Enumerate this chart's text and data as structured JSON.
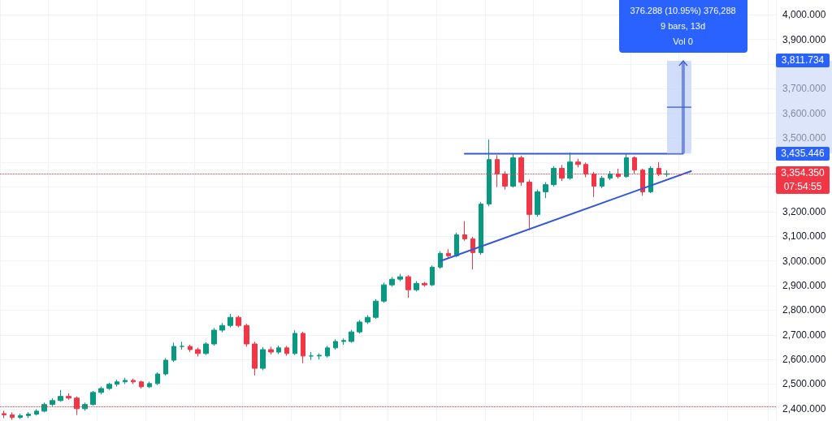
{
  "chart_data": {
    "type": "candlestick",
    "categories": [
      null,
      null,
      null,
      null,
      null,
      null,
      null,
      null,
      null,
      null,
      null,
      null,
      null,
      null,
      null,
      null,
      null,
      null,
      null,
      null,
      null,
      null,
      null,
      null,
      null,
      null,
      null,
      null,
      null,
      null,
      null,
      null,
      null,
      null,
      null,
      null,
      null,
      null,
      null,
      null,
      null,
      null,
      null,
      null,
      null,
      null,
      null,
      null,
      null,
      null,
      null,
      null,
      null,
      null,
      null,
      null,
      null,
      null,
      null,
      null,
      null,
      null,
      null,
      null,
      null,
      null,
      null,
      null,
      null,
      null,
      null,
      null,
      null,
      null,
      null,
      null,
      null,
      null,
      null,
      null,
      null,
      null,
      null,
      null,
      null,
      null,
      null,
      null,
      null,
      null,
      null,
      null,
      null,
      null,
      null,
      null
    ],
    "ohlc": [
      [
        2380,
        2392,
        2362,
        2375
      ],
      [
        2375,
        2385,
        2355,
        2365
      ],
      [
        2365,
        2380,
        2358,
        2372
      ],
      [
        2372,
        2386,
        2362,
        2378
      ],
      [
        2378,
        2398,
        2372,
        2390
      ],
      [
        2390,
        2425,
        2385,
        2417
      ],
      [
        2417,
        2442,
        2410,
        2433
      ],
      [
        2433,
        2476,
        2428,
        2450
      ],
      [
        2450,
        2462,
        2436,
        2443
      ],
      [
        2443,
        2450,
        2374,
        2400
      ],
      [
        2400,
        2425,
        2392,
        2417
      ],
      [
        2417,
        2472,
        2412,
        2466
      ],
      [
        2466,
        2490,
        2458,
        2482
      ],
      [
        2482,
        2506,
        2476,
        2499
      ],
      [
        2499,
        2518,
        2490,
        2509
      ],
      [
        2509,
        2526,
        2500,
        2515
      ],
      [
        2515,
        2522,
        2500,
        2509
      ],
      [
        2509,
        2514,
        2482,
        2489
      ],
      [
        2489,
        2510,
        2484,
        2502
      ],
      [
        2502,
        2548,
        2496,
        2541
      ],
      [
        2541,
        2605,
        2535,
        2597
      ],
      [
        2597,
        2668,
        2590,
        2653
      ],
      [
        2653,
        2672,
        2640,
        2653
      ],
      [
        2653,
        2660,
        2630,
        2640
      ],
      [
        2640,
        2648,
        2612,
        2624
      ],
      [
        2624,
        2670,
        2618,
        2663
      ],
      [
        2663,
        2728,
        2656,
        2719
      ],
      [
        2719,
        2748,
        2710,
        2738
      ],
      [
        2738,
        2785,
        2730,
        2771
      ],
      [
        2771,
        2778,
        2730,
        2738
      ],
      [
        2738,
        2745,
        2652,
        2663
      ],
      [
        2663,
        2672,
        2535,
        2564
      ],
      [
        2564,
        2650,
        2556,
        2640
      ],
      [
        2640,
        2652,
        2620,
        2630
      ],
      [
        2630,
        2656,
        2622,
        2647
      ],
      [
        2647,
        2655,
        2615,
        2624
      ],
      [
        2624,
        2718,
        2618,
        2706
      ],
      [
        2706,
        2712,
        2585,
        2614
      ],
      [
        2614,
        2630,
        2598,
        2614
      ],
      [
        2614,
        2625,
        2600,
        2617
      ],
      [
        2614,
        2655,
        2608,
        2647
      ],
      [
        2647,
        2682,
        2640,
        2673
      ],
      [
        2673,
        2685,
        2660,
        2677
      ],
      [
        2673,
        2720,
        2668,
        2712
      ],
      [
        2712,
        2760,
        2705,
        2752
      ],
      [
        2752,
        2780,
        2744,
        2771
      ],
      [
        2771,
        2845,
        2765,
        2837
      ],
      [
        2837,
        2912,
        2830,
        2903
      ],
      [
        2903,
        2935,
        2895,
        2926
      ],
      [
        2926,
        2948,
        2918,
        2936
      ],
      [
        2936,
        2942,
        2850,
        2883
      ],
      [
        2883,
        2918,
        2876,
        2909
      ],
      [
        2909,
        2915,
        2895,
        2903
      ],
      [
        2903,
        2982,
        2898,
        2975
      ],
      [
        2975,
        3040,
        2968,
        3031
      ],
      [
        3031,
        3048,
        3012,
        3021
      ],
      [
        3021,
        3115,
        3015,
        3106
      ],
      [
        3106,
        3162,
        3082,
        3090
      ],
      [
        3090,
        3098,
        2965,
        3034
      ],
      [
        3034,
        3240,
        3025,
        3231
      ],
      [
        3231,
        3494,
        3222,
        3412
      ],
      [
        3412,
        3430,
        3300,
        3353
      ],
      [
        3353,
        3365,
        3290,
        3304
      ],
      [
        3304,
        3435,
        3298,
        3419
      ],
      [
        3419,
        3428,
        3305,
        3320
      ],
      [
        3320,
        3330,
        3125,
        3189
      ],
      [
        3189,
        3290,
        3180,
        3281
      ],
      [
        3281,
        3320,
        3255,
        3310
      ],
      [
        3310,
        3385,
        3302,
        3376
      ],
      [
        3376,
        3390,
        3325,
        3336
      ],
      [
        3336,
        3440,
        3330,
        3402
      ],
      [
        3402,
        3415,
        3380,
        3392
      ],
      [
        3392,
        3400,
        3340,
        3353
      ],
      [
        3353,
        3362,
        3260,
        3304
      ],
      [
        3304,
        3345,
        3296,
        3336
      ],
      [
        3336,
        3365,
        3328,
        3353
      ],
      [
        3353,
        3375,
        3335,
        3343
      ],
      [
        3343,
        3435,
        3338,
        3419
      ],
      [
        3419,
        3425,
        3355,
        3369
      ],
      [
        3369,
        3375,
        3265,
        3281
      ],
      [
        3281,
        3385,
        3275,
        3376
      ],
      [
        3376,
        3402,
        3345,
        3352
      ],
      [
        3352,
        3368,
        3342,
        3354
      ],
      null,
      null,
      null,
      null,
      null,
      null,
      null,
      null,
      null,
      null,
      null,
      null,
      null
    ],
    "series": [
      {
        "type": "line",
        "color": "#3558d8",
        "values": [
          null,
          null,
          null,
          null,
          null,
          null,
          null,
          null,
          null,
          null,
          null,
          null,
          null,
          null,
          null,
          null,
          null,
          null,
          null,
          null,
          null,
          null,
          null,
          null,
          null,
          null,
          null,
          null,
          null,
          null,
          null,
          null,
          null,
          null,
          null,
          null,
          null,
          null,
          null,
          null,
          null,
          null,
          null,
          null,
          null,
          null,
          null,
          null,
          null,
          null,
          null,
          null,
          null,
          null,
          null,
          null,
          null,
          3435.446,
          null,
          null,
          null,
          null,
          null,
          null,
          null,
          null,
          null,
          null,
          null,
          null,
          null,
          null,
          null,
          null,
          null,
          null,
          null,
          null,
          null,
          null,
          null,
          null,
          null,
          null,
          3435.446,
          null,
          null,
          null,
          null,
          null,
          null,
          null,
          null,
          null,
          null,
          null
        ]
      },
      {
        "type": "line",
        "color": "#3558d8",
        "values": [
          null,
          null,
          null,
          null,
          null,
          null,
          null,
          null,
          null,
          null,
          null,
          null,
          null,
          null,
          null,
          null,
          null,
          null,
          null,
          null,
          null,
          null,
          null,
          null,
          null,
          null,
          null,
          null,
          null,
          null,
          null,
          null,
          null,
          null,
          null,
          null,
          null,
          null,
          null,
          null,
          null,
          null,
          null,
          null,
          null,
          null,
          null,
          null,
          null,
          null,
          null,
          null,
          null,
          null,
          3000,
          null,
          null,
          null,
          null,
          null,
          null,
          null,
          null,
          null,
          null,
          null,
          null,
          null,
          null,
          null,
          null,
          null,
          null,
          null,
          null,
          null,
          null,
          null,
          null,
          null,
          null,
          null,
          null,
          null,
          null,
          3365,
          null,
          null,
          null,
          null,
          null,
          null,
          null,
          null,
          null,
          null
        ]
      }
    ],
    "marker": "none",
    "line_style": "solid",
    "ylim": [
      2350,
      4060
    ],
    "yticks": [
      {
        "value": 2400,
        "label": "2,400.000"
      },
      {
        "value": 2500,
        "label": "2,500.000"
      },
      {
        "value": 2600,
        "label": "2,600.000"
      },
      {
        "value": 2700,
        "label": "2,700.000"
      },
      {
        "value": 2800,
        "label": "2,800.000"
      },
      {
        "value": 2900,
        "label": "2,900.000"
      },
      {
        "value": 3000,
        "label": "3,000.000"
      },
      {
        "value": 3100,
        "label": "3,100.000"
      },
      {
        "value": 3200,
        "label": "3,200.000"
      },
      {
        "value": 3300,
        "label": null
      },
      {
        "value": 3400,
        "label": null
      },
      {
        "value": 3500,
        "label": "3,500.000"
      },
      {
        "value": 3600,
        "label": "3,600.000"
      },
      {
        "value": 3700,
        "label": "3,700.000"
      },
      {
        "value": 3800,
        "label": null
      },
      {
        "value": 3900,
        "label": "3,900.000"
      },
      {
        "value": 4000,
        "label": "4,000.000"
      }
    ],
    "tick_labels": "y",
    "grid": true,
    "ref_lines": [
      {
        "axis": "y",
        "value": 3354.35,
        "label": "3,354.350",
        "color": "#f23645",
        "line_style": "dotted"
      },
      {
        "axis": "y",
        "value": 2410,
        "color": "#f23645",
        "line_style": "dotted"
      }
    ],
    "annotations": [
      "376.288 (10.95%) 376,288",
      "9 bars, 13d",
      "Vol 0",
      "07:54:55",
      "3,435.446",
      "3,811.734"
    ]
  }
}
